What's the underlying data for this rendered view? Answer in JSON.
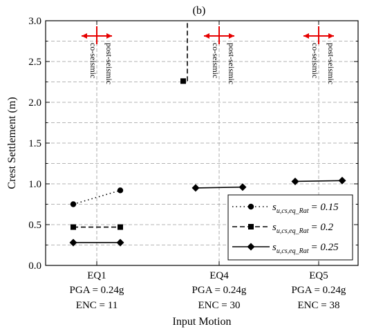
{
  "panel_label": "(b)",
  "chart_data": {
    "type": "line",
    "title": "",
    "xlabel": "Input Motion",
    "ylabel": "Crest Settlement (m)",
    "ylim": [
      0.0,
      3.0
    ],
    "yticks": [
      "0.0",
      "0.5",
      "1.0",
      "1.5",
      "2.0",
      "2.5",
      "3.0"
    ],
    "ytick_values": [
      0.0,
      0.5,
      1.0,
      1.5,
      2.0,
      2.5,
      3.0
    ],
    "grid": true,
    "legend_position": "bottom-right",
    "categories": [
      {
        "name": "EQ1",
        "pga": "PGA = 0.24g",
        "enc": "ENC = 11"
      },
      {
        "name": "EQ4",
        "pga": "PGA = 0.24g",
        "enc": "ENC = 30"
      },
      {
        "name": "EQ5",
        "pga": "PGA = 0.24g",
        "enc": "ENC = 38"
      }
    ],
    "phase_labels": {
      "co": "co-seismic",
      "post": "post-seismic"
    },
    "series": [
      {
        "name": "s",
        "subscript": "u,cs,eq_Rat",
        "value_label": "= 0.15",
        "marker": "circle",
        "line": "dotted",
        "points": [
          {
            "category": "EQ1",
            "co": 0.75,
            "post": 0.92
          }
        ]
      },
      {
        "name": "s",
        "subscript": "u,cs,eq_Rat",
        "value_label": "= 0.2",
        "marker": "square",
        "line": "dashed",
        "points": [
          {
            "category": "EQ1",
            "co": 0.47,
            "post": 0.47
          },
          {
            "category": "EQ4",
            "co": 2.26,
            "post": 3.0
          }
        ]
      },
      {
        "name": "s",
        "subscript": "u,cs,eq_Rat",
        "value_label": "= 0.25",
        "marker": "diamond",
        "line": "solid",
        "points": [
          {
            "category": "EQ1",
            "co": 0.28,
            "post": 0.28
          },
          {
            "category": "EQ4",
            "co": 0.95,
            "post": 0.96
          },
          {
            "category": "EQ5",
            "co": 1.03,
            "post": 1.04
          }
        ]
      }
    ]
  }
}
